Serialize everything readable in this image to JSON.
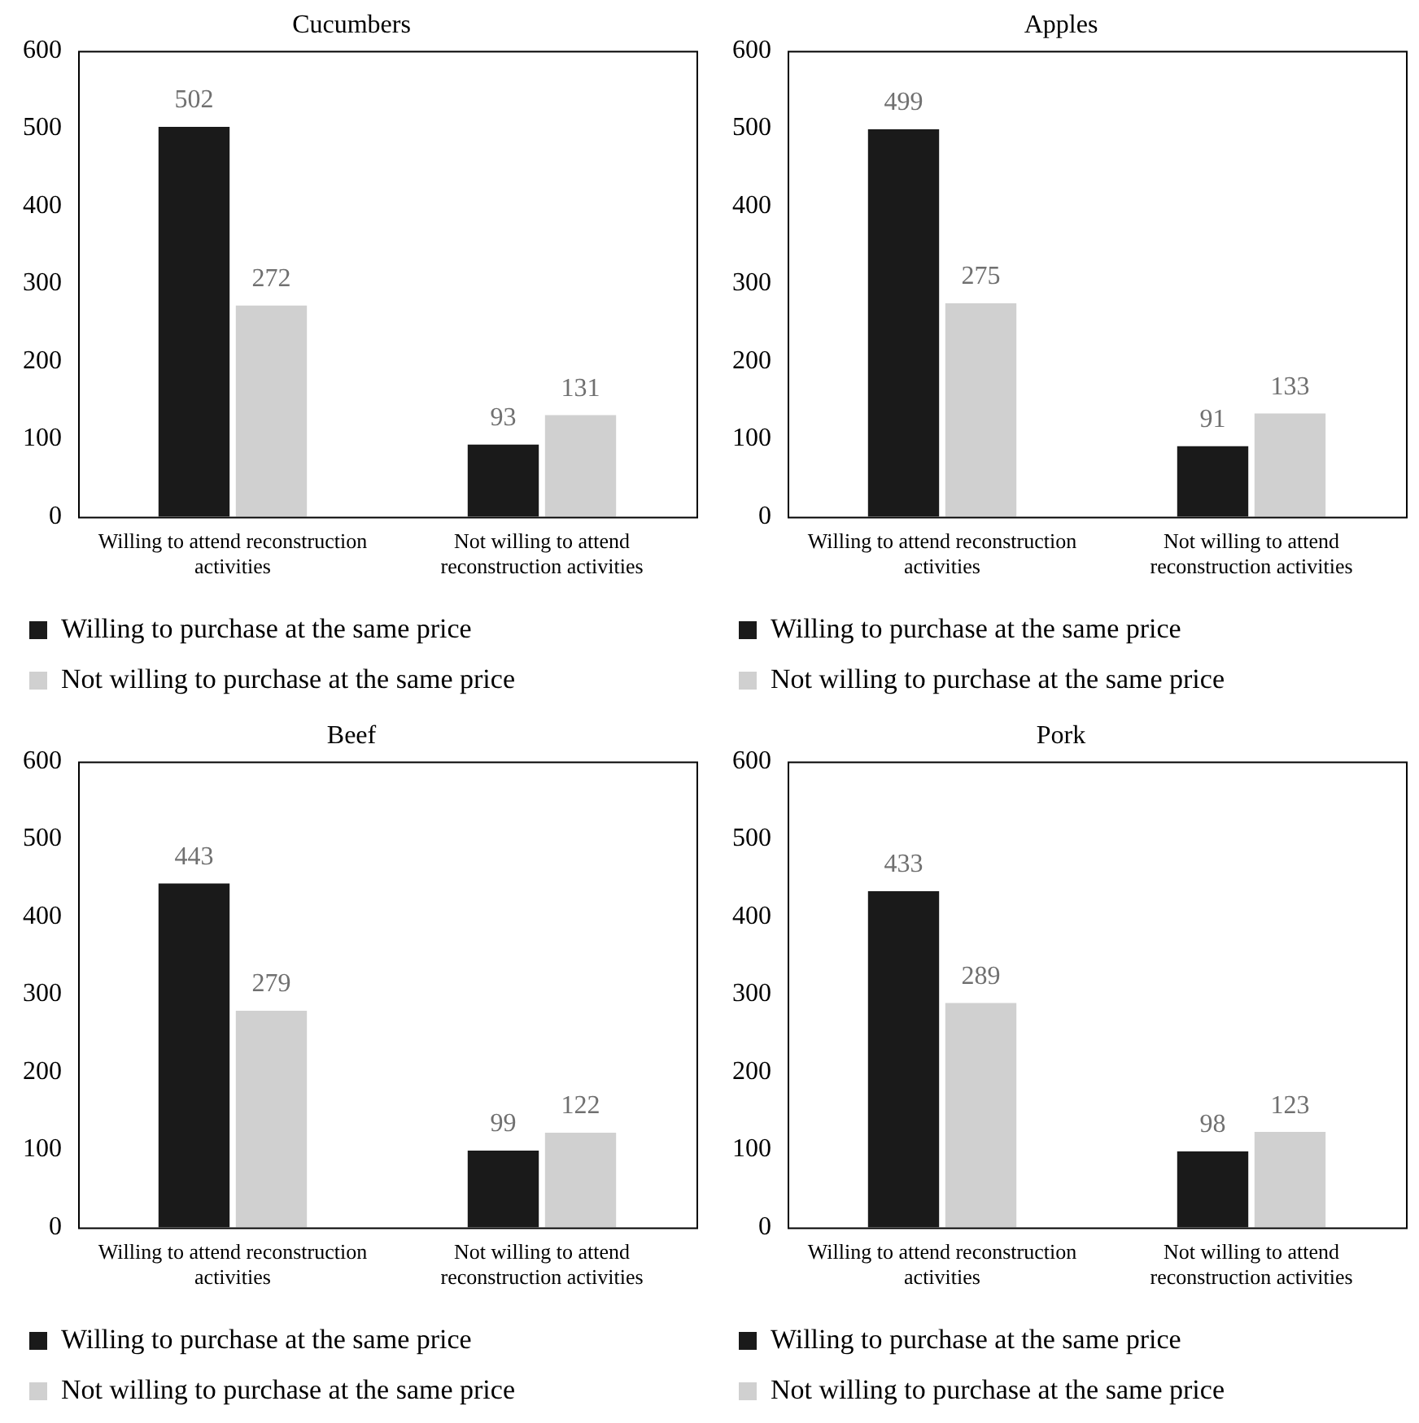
{
  "chart_data": [
    {
      "type": "bar",
      "title": "Cucumbers",
      "categories": [
        "Willing to attend reconstruction activities",
        "Not willing to attend reconstruction activities"
      ],
      "series": [
        {
          "name": "Willing to purchase at the same price",
          "color": "#1a1a1a",
          "values": [
            502,
            93
          ]
        },
        {
          "name": "Not willing to purchase at the same price",
          "color": "#d0d0d0",
          "values": [
            272,
            131
          ]
        }
      ],
      "ylim": [
        0,
        600
      ],
      "yticks": [
        0,
        100,
        200,
        300,
        400,
        500,
        600
      ],
      "data_labels": true,
      "legend": "bottom",
      "grid": false
    },
    {
      "type": "bar",
      "title": "Apples",
      "categories": [
        "Willing to attend reconstruction activities",
        "Not willing to attend reconstruction activities"
      ],
      "series": [
        {
          "name": "Willing to purchase at the same price",
          "color": "#1a1a1a",
          "values": [
            499,
            91
          ]
        },
        {
          "name": "Not willing to purchase at the same price",
          "color": "#d0d0d0",
          "values": [
            275,
            133
          ]
        }
      ],
      "ylim": [
        0,
        600
      ],
      "yticks": [
        0,
        100,
        200,
        300,
        400,
        500,
        600
      ],
      "data_labels": true,
      "legend": "bottom",
      "grid": false
    },
    {
      "type": "bar",
      "title": "Beef",
      "categories": [
        "Willing to attend reconstruction activities",
        "Not willing to attend reconstruction activities"
      ],
      "series": [
        {
          "name": "Willing to purchase at the same price",
          "color": "#1a1a1a",
          "values": [
            443,
            99
          ]
        },
        {
          "name": "Not willing to purchase at the same price",
          "color": "#d0d0d0",
          "values": [
            279,
            122
          ]
        }
      ],
      "ylim": [
        0,
        600
      ],
      "yticks": [
        0,
        100,
        200,
        300,
        400,
        500,
        600
      ],
      "data_labels": true,
      "legend": "bottom",
      "grid": false
    },
    {
      "type": "bar",
      "title": "Pork",
      "categories": [
        "Willing to attend reconstruction activities",
        "Not willing to attend reconstruction activities"
      ],
      "series": [
        {
          "name": "Willing to purchase at the same price",
          "color": "#1a1a1a",
          "values": [
            433,
            98
          ]
        },
        {
          "name": "Not willing to purchase at the same price",
          "color": "#d0d0d0",
          "values": [
            289,
            123
          ]
        }
      ],
      "ylim": [
        0,
        600
      ],
      "yticks": [
        0,
        100,
        200,
        300,
        400,
        500,
        600
      ],
      "data_labels": true,
      "legend": "bottom",
      "grid": false
    }
  ]
}
